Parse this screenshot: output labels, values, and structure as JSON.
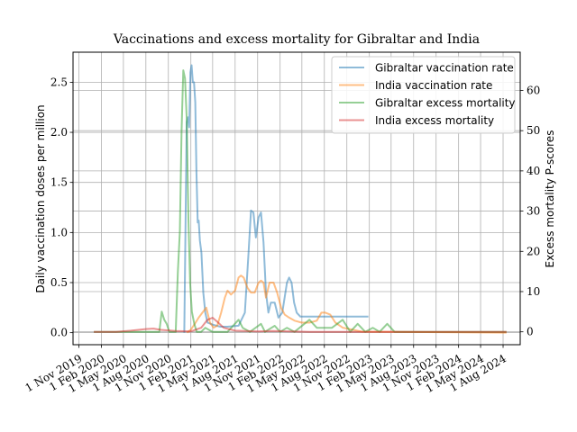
{
  "chart_data": {
    "type": "line",
    "title": "Vaccinations and excess mortality for Gibraltar and India",
    "ylabel": "Daily vaccination doses per million",
    "y2label": "Excess mortality P-scores",
    "ylim": [
      -0.12,
      2.8
    ],
    "y2lim": [
      -3.2,
      69.5
    ],
    "xlim": [
      "2019-10-08",
      "2024-10-10"
    ],
    "grid": true,
    "legend_position": "top-right",
    "x_ticks": [
      "2019-11-01",
      "2020-02-01",
      "2020-05-01",
      "2020-08-01",
      "2020-11-01",
      "2021-02-01",
      "2021-05-01",
      "2021-08-01",
      "2021-11-01",
      "2022-02-01",
      "2022-05-01",
      "2022-08-01",
      "2022-11-01",
      "2023-02-01",
      "2023-05-01",
      "2023-08-01",
      "2023-11-01",
      "2024-02-01",
      "2024-05-01",
      "2024-08-01"
    ],
    "x_tick_labels": [
      "1 Nov 2019",
      "1 Feb 2020",
      "1 May 2020",
      "1 Aug 2020",
      "1 Nov 2020",
      "1 Feb 2021",
      "1 May 2021",
      "1 Aug 2021",
      "1 Nov 2021",
      "1 Feb 2022",
      "1 May 2022",
      "1 Aug 2022",
      "1 Nov 2022",
      "1 Feb 2023",
      "1 May 2023",
      "1 Aug 2023",
      "1 Nov 2023",
      "1 Feb 2024",
      "1 May 2024",
      "1 Aug 2024"
    ],
    "y_ticks": [
      0.0,
      0.5,
      1.0,
      1.5,
      2.0,
      2.5
    ],
    "y_tick_labels": [
      "0.0",
      "0.5",
      "1.0",
      "1.5",
      "2.0",
      "2.5"
    ],
    "y2_ticks": [
      0,
      10,
      20,
      30,
      40,
      50,
      60
    ],
    "y2_tick_labels": [
      "0",
      "10",
      "20",
      "30",
      "40",
      "50",
      "60"
    ],
    "series": [
      {
        "name": "Gibraltar vaccination rate",
        "axis": "left",
        "color": "#1f77b4",
        "points": [
          [
            "2021-01-05",
            0.0
          ],
          [
            "2021-01-10",
            1.0
          ],
          [
            "2021-01-15",
            2.1
          ],
          [
            "2021-01-20",
            2.15
          ],
          [
            "2021-01-25",
            2.05
          ],
          [
            "2021-01-30",
            2.6
          ],
          [
            "2021-02-04",
            2.67
          ],
          [
            "2021-02-09",
            2.5
          ],
          [
            "2021-02-14",
            2.5
          ],
          [
            "2021-02-19",
            2.3
          ],
          [
            "2021-02-24",
            1.6
          ],
          [
            "2021-03-01",
            1.1
          ],
          [
            "2021-03-05",
            1.12
          ],
          [
            "2021-03-10",
            0.92
          ],
          [
            "2021-03-16",
            0.8
          ],
          [
            "2021-03-24",
            0.4
          ],
          [
            "2021-04-01",
            0.2
          ],
          [
            "2021-04-10",
            0.1
          ],
          [
            "2021-05-01",
            0.08
          ],
          [
            "2021-06-01",
            0.06
          ],
          [
            "2021-07-01",
            0.06
          ],
          [
            "2021-08-15",
            0.07
          ],
          [
            "2021-09-10",
            0.2
          ],
          [
            "2021-09-25",
            0.8
          ],
          [
            "2021-10-05",
            1.22
          ],
          [
            "2021-10-15",
            1.2
          ],
          [
            "2021-10-25",
            0.95
          ],
          [
            "2021-11-05",
            1.15
          ],
          [
            "2021-11-15",
            1.2
          ],
          [
            "2021-11-25",
            0.9
          ],
          [
            "2021-12-05",
            0.4
          ],
          [
            "2021-12-15",
            0.2
          ],
          [
            "2021-12-25",
            0.3
          ],
          [
            "2022-01-10",
            0.3
          ],
          [
            "2022-01-25",
            0.15
          ],
          [
            "2022-02-10",
            0.2
          ],
          [
            "2022-03-01",
            0.5
          ],
          [
            "2022-03-10",
            0.55
          ],
          [
            "2022-03-20",
            0.5
          ],
          [
            "2022-03-30",
            0.3
          ],
          [
            "2022-04-10",
            0.2
          ],
          [
            "2022-04-25",
            0.16
          ],
          [
            "2022-06-01",
            0.16
          ],
          [
            "2022-09-01",
            0.16
          ],
          [
            "2022-12-01",
            0.16
          ],
          [
            "2023-01-28",
            0.16
          ]
        ]
      },
      {
        "name": "India vaccination rate",
        "axis": "left",
        "color": "#ff7f0e",
        "points": [
          [
            "2021-01-16",
            0.0
          ],
          [
            "2021-02-01",
            0.03
          ],
          [
            "2021-02-20",
            0.1
          ],
          [
            "2021-03-05",
            0.15
          ],
          [
            "2021-03-20",
            0.2
          ],
          [
            "2021-04-05",
            0.25
          ],
          [
            "2021-04-20",
            0.1
          ],
          [
            "2021-05-05",
            0.05
          ],
          [
            "2021-05-20",
            0.07
          ],
          [
            "2021-06-05",
            0.2
          ],
          [
            "2021-06-20",
            0.35
          ],
          [
            "2021-07-01",
            0.42
          ],
          [
            "2021-07-15",
            0.38
          ],
          [
            "2021-08-01",
            0.42
          ],
          [
            "2021-08-15",
            0.55
          ],
          [
            "2021-08-25",
            0.57
          ],
          [
            "2021-09-05",
            0.55
          ],
          [
            "2021-09-20",
            0.45
          ],
          [
            "2021-10-05",
            0.4
          ],
          [
            "2021-10-20",
            0.4
          ],
          [
            "2021-11-05",
            0.5
          ],
          [
            "2021-11-15",
            0.52
          ],
          [
            "2021-11-25",
            0.5
          ],
          [
            "2021-12-05",
            0.35
          ],
          [
            "2021-12-20",
            0.5
          ],
          [
            "2022-01-05",
            0.5
          ],
          [
            "2022-01-20",
            0.4
          ],
          [
            "2022-02-05",
            0.25
          ],
          [
            "2022-02-20",
            0.18
          ],
          [
            "2022-03-10",
            0.15
          ],
          [
            "2022-04-01",
            0.12
          ],
          [
            "2022-05-01",
            0.1
          ],
          [
            "2022-06-01",
            0.1
          ],
          [
            "2022-07-01",
            0.12
          ],
          [
            "2022-07-20",
            0.2
          ],
          [
            "2022-08-05",
            0.2
          ],
          [
            "2022-08-25",
            0.18
          ],
          [
            "2022-09-15",
            0.1
          ],
          [
            "2022-10-15",
            0.05
          ],
          [
            "2023-01-01",
            0.01
          ],
          [
            "2024-08-01",
            0.0
          ],
          [
            "2024-08-15",
            0.0
          ]
        ]
      },
      {
        "name": "Gibraltar excess mortality",
        "axis": "right",
        "color": "#2ca02c",
        "points": [
          [
            "2020-01-01",
            0
          ],
          [
            "2020-09-25",
            0
          ],
          [
            "2020-10-05",
            5
          ],
          [
            "2020-10-15",
            3
          ],
          [
            "2020-10-25",
            2
          ],
          [
            "2020-11-05",
            0
          ],
          [
            "2020-12-01",
            0
          ],
          [
            "2020-12-10",
            15
          ],
          [
            "2020-12-18",
            25
          ],
          [
            "2020-12-25",
            50
          ],
          [
            "2021-01-01",
            65
          ],
          [
            "2021-01-08",
            63
          ],
          [
            "2021-01-15",
            53
          ],
          [
            "2021-01-22",
            28
          ],
          [
            "2021-01-29",
            12
          ],
          [
            "2021-02-05",
            5
          ],
          [
            "2021-02-15",
            2
          ],
          [
            "2021-02-25",
            0
          ],
          [
            "2021-03-15",
            0
          ],
          [
            "2021-04-01",
            1
          ],
          [
            "2021-05-01",
            0
          ],
          [
            "2021-07-01",
            0
          ],
          [
            "2021-08-15",
            3
          ],
          [
            "2021-09-01",
            1
          ],
          [
            "2021-10-01",
            0
          ],
          [
            "2021-11-15",
            2
          ],
          [
            "2021-12-01",
            0
          ],
          [
            "2022-01-10",
            1.5
          ],
          [
            "2022-02-01",
            0
          ],
          [
            "2022-03-01",
            1
          ],
          [
            "2022-04-01",
            0
          ],
          [
            "2022-06-01",
            3
          ],
          [
            "2022-07-01",
            1
          ],
          [
            "2022-09-01",
            1
          ],
          [
            "2022-10-15",
            3
          ],
          [
            "2022-11-15",
            0
          ],
          [
            "2022-12-15",
            2
          ],
          [
            "2023-01-15",
            0
          ],
          [
            "2023-02-15",
            1
          ],
          [
            "2023-03-15",
            0
          ],
          [
            "2023-04-15",
            2
          ],
          [
            "2023-05-15",
            0
          ],
          [
            "2024-08-15",
            0
          ]
        ]
      },
      {
        "name": "India excess mortality",
        "axis": "right",
        "color": "#d62728",
        "points": [
          [
            "2020-01-01",
            0
          ],
          [
            "2020-04-01",
            0
          ],
          [
            "2020-06-01",
            0.3
          ],
          [
            "2020-08-01",
            0.7
          ],
          [
            "2020-09-01",
            0.8
          ],
          [
            "2020-10-01",
            0.5
          ],
          [
            "2020-12-01",
            0.2
          ],
          [
            "2021-02-01",
            0.1
          ],
          [
            "2021-03-15",
            1
          ],
          [
            "2021-04-10",
            3
          ],
          [
            "2021-05-01",
            3.5
          ],
          [
            "2021-05-20",
            2.5
          ],
          [
            "2021-06-15",
            1
          ],
          [
            "2021-08-01",
            0.3
          ],
          [
            "2021-11-01",
            0.1
          ],
          [
            "2022-01-01",
            0.2
          ],
          [
            "2022-06-01",
            0
          ],
          [
            "2024-08-15",
            0
          ]
        ]
      }
    ]
  }
}
